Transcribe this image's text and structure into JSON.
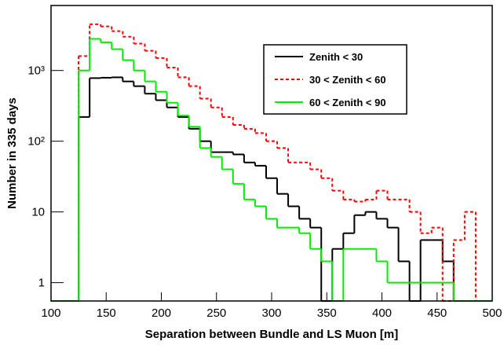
{
  "chart_data": {
    "type": "histogram",
    "xlabel": "Separation between Bundle and LS Muon [m]",
    "ylabel": "Number in 335 days",
    "log_y": true,
    "legend": "upper right",
    "xlim": [
      100,
      500
    ],
    "ylim": [
      0.55,
      8300
    ],
    "xticks": [
      100,
      150,
      200,
      250,
      300,
      350,
      400,
      450,
      500
    ],
    "yticks": [
      1,
      10,
      {
        "value": 100,
        "label": "10²"
      },
      {
        "value": 1000,
        "label": "10³"
      }
    ],
    "bins": [
      125,
      135,
      145,
      155,
      165,
      175,
      185,
      195,
      205,
      215,
      225,
      235,
      245,
      255,
      265,
      275,
      285,
      295,
      305,
      315,
      325,
      335,
      345,
      355,
      365,
      375,
      385,
      395,
      405,
      415,
      425,
      435,
      445,
      455,
      465,
      475,
      485,
      495
    ],
    "series": [
      {
        "name": "Zenith < 30",
        "color": "#000000",
        "dash": false,
        "values": [
          220,
          780,
          790,
          800,
          700,
          600,
          470,
          380,
          300,
          220,
          150,
          100,
          70,
          70,
          65,
          50,
          45,
          30,
          18,
          12,
          8,
          6,
          0,
          3,
          5,
          9,
          10,
          8,
          6,
          2,
          0,
          4,
          4,
          2,
          0,
          0,
          0
        ]
      },
      {
        "name": "30 < Zenith < 60",
        "color": "#ff0000",
        "dash": true,
        "values": [
          1600,
          4500,
          4200,
          3600,
          3000,
          2400,
          1900,
          1500,
          1100,
          800,
          600,
          400,
          300,
          220,
          170,
          150,
          130,
          100,
          80,
          50,
          50,
          40,
          30,
          20,
          15,
          14,
          15,
          20,
          15,
          15,
          10,
          5,
          6,
          0,
          4,
          10,
          0
        ]
      },
      {
        "name": "60 < Zenith < 90",
        "color": "#00ee00",
        "dash": false,
        "values": [
          1000,
          2800,
          2500,
          2000,
          1400,
          1000,
          700,
          500,
          350,
          230,
          160,
          80,
          60,
          40,
          25,
          15,
          12,
          8,
          6,
          6,
          5,
          3,
          2,
          0,
          3,
          3,
          3,
          2,
          1,
          1,
          1,
          1,
          1,
          1,
          0,
          0,
          0
        ]
      }
    ]
  }
}
